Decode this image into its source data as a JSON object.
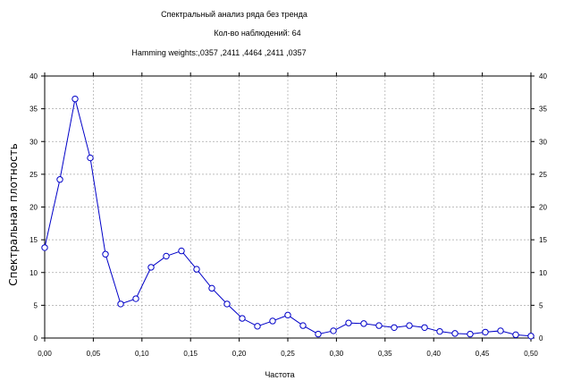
{
  "chart_data": {
    "type": "line",
    "title": "Спектральный анализ ряда без тренда",
    "subtitle": "Кол-во наблюдений: 64",
    "subtitle2": "Hamming weights:,0357 ,2411 ,4464 ,2411 ,0357",
    "xlabel": "Частота",
    "ylabel": "Спектральная плотность",
    "xlim": [
      0.0,
      0.5
    ],
    "ylim": [
      0,
      40
    ],
    "x_ticks": [
      "0,00",
      "0,05",
      "0,10",
      "0,15",
      "0,20",
      "0,25",
      "0,30",
      "0,35",
      "0,40",
      "0,45",
      "0,50"
    ],
    "y_ticks": [
      "0",
      "5",
      "10",
      "15",
      "20",
      "25",
      "30",
      "35",
      "40"
    ],
    "grid": true,
    "line_color": "#0000c8",
    "marker": "open-circle",
    "series": [
      {
        "x": [
          0.0,
          0.015625,
          0.03125,
          0.046875,
          0.0625,
          0.078125,
          0.09375,
          0.109375,
          0.125,
          0.140625,
          0.15625,
          0.171875,
          0.1875,
          0.203125,
          0.21875,
          0.234375,
          0.25,
          0.265625,
          0.28125,
          0.296875,
          0.3125,
          0.328125,
          0.34375,
          0.359375,
          0.375,
          0.390625,
          0.40625,
          0.421875,
          0.4375,
          0.453125,
          0.46875,
          0.484375,
          0.5
        ],
        "values": [
          13.8,
          24.2,
          36.5,
          27.5,
          12.8,
          5.2,
          6.0,
          10.8,
          12.5,
          13.3,
          10.5,
          7.6,
          5.2,
          3.0,
          1.8,
          2.6,
          3.5,
          1.9,
          0.6,
          1.1,
          2.3,
          2.2,
          1.9,
          1.6,
          1.9,
          1.6,
          1.0,
          0.7,
          0.6,
          0.9,
          1.1,
          0.5,
          0.3
        ]
      }
    ]
  }
}
